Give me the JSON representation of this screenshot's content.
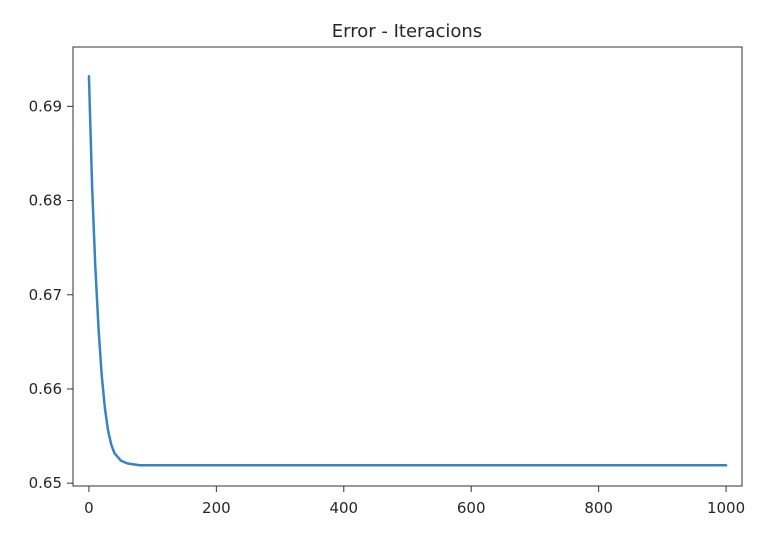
{
  "chart_data": {
    "type": "line",
    "title": "Error - Iteracions",
    "xlabel": "",
    "ylabel": "",
    "xlim": [
      -25,
      1025
    ],
    "ylim": [
      0.6497,
      0.6963
    ],
    "grid": false,
    "legend": "none",
    "xticks": [
      0,
      200,
      400,
      600,
      800,
      1000
    ],
    "xtick_labels": [
      "0",
      "200",
      "400",
      "600",
      "800",
      "1000"
    ],
    "yticks": [
      0.65,
      0.66,
      0.67,
      0.68,
      0.69
    ],
    "ytick_labels": [
      "0.65",
      "0.66",
      "0.67",
      "0.68",
      "0.69"
    ],
    "series": [
      {
        "color": "#3b82c4",
        "x": [
          0,
          5,
          10,
          15,
          20,
          25,
          30,
          35,
          40,
          50,
          60,
          70,
          80,
          100,
          150,
          200,
          300,
          400,
          500,
          600,
          700,
          800,
          900,
          1000
        ],
        "y": [
          0.6932,
          0.6815,
          0.673,
          0.6665,
          0.6615,
          0.658,
          0.6556,
          0.6541,
          0.6532,
          0.6524,
          0.6521,
          0.652,
          0.6519,
          0.6519,
          0.6519,
          0.6519,
          0.6519,
          0.6519,
          0.6519,
          0.6519,
          0.6519,
          0.6519,
          0.6519,
          0.6519
        ]
      }
    ]
  }
}
